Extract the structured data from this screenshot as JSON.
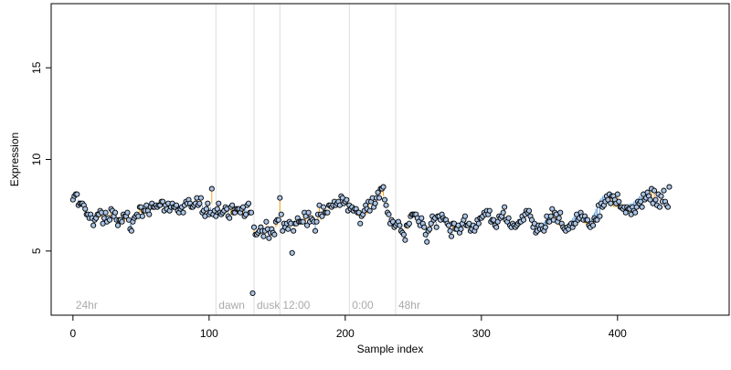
{
  "chart_data": {
    "type": "scatter",
    "xlabel": "Sample index",
    "ylabel": "Expression",
    "xlim": [
      -16,
      482
    ],
    "ylim": [
      1.5,
      18.5
    ],
    "x_ticks": [
      0,
      100,
      200,
      300,
      400
    ],
    "x_tick_labels": [
      "0",
      "100",
      "200",
      "300",
      "400"
    ],
    "y_ticks": [
      5,
      10,
      15
    ],
    "y_tick_labels": [
      "5",
      "10",
      "15"
    ],
    "grid": false,
    "segment_colors": {
      "above_trend": "#f0a020",
      "below_trend": "#6a9fd8"
    },
    "point_fill": "#aac4e6",
    "point_stroke": "#000000",
    "phase_lines": [
      {
        "x": 105,
        "label": "dawn"
      },
      {
        "x": 133,
        "label": "dusk"
      },
      {
        "x": 152,
        "label": "12:00"
      },
      {
        "x": 203,
        "label": "0:00"
      },
      {
        "x": 237,
        "label": "48hr"
      }
    ],
    "phase_start_label": "24hr",
    "series": [
      {
        "values": [
          7.7,
          7.9,
          8.1,
          8.1,
          7.8,
          7.6,
          7.5,
          7.5,
          7.2,
          7.1,
          6.9,
          6.8,
          7.0,
          7.1,
          7.1,
          6.6,
          7.0,
          7.0,
          6.9,
          6.8,
          6.9,
          6.8,
          6.9,
          7.0,
          6.9,
          6.7,
          6.9,
          7.0,
          6.9,
          6.9,
          7.0,
          6.7,
          6.7,
          6.6,
          6.5,
          6.5,
          6.6,
          6.7,
          6.6,
          6.9,
          7.0,
          6.8,
          6.5,
          6.6,
          6.6,
          6.7,
          6.9,
          6.9,
          7.0,
          7.1,
          7.1,
          7.2,
          7.0,
          7.4,
          7.2,
          7.3,
          7.4,
          7.4,
          7.4,
          7.4,
          7.5,
          7.4,
          7.5,
          7.6,
          7.6,
          7.7,
          7.5,
          7.3,
          7.5,
          7.3,
          7.5,
          7.2,
          7.4,
          7.6,
          7.5,
          7.4,
          7.5,
          7.5,
          7.2,
          7.3,
          7.5,
          7.4,
          7.6,
          7.6,
          7.5,
          7.5,
          7.6,
          7.3,
          7.6,
          7.6,
          7.8,
          7.7,
          7.5,
          7.4,
          7.7,
          7.5,
          7.3,
          7.3,
          7.5,
          7.4,
          7.3,
          7.4,
          7.6,
          7.1,
          7.3,
          7.2,
          7.2,
          7.2,
          7.2,
          7.2,
          7.3,
          7.2,
          7.2,
          7.1,
          7.2,
          7.0,
          7.0,
          7.2,
          7.0,
          7.0,
          7.2,
          7.1,
          7.1,
          7.1,
          7.2,
          7.0,
          7.4,
          7.3,
          7.4,
          7.4,
          7.2,
          7.2,
          2.7,
          6.0,
          6.0,
          6.0,
          5.9,
          6.0,
          6.0,
          6.1,
          5.8,
          6.1,
          6.4,
          6.2,
          6.1,
          6.0,
          5.9,
          6.2,
          5.8,
          6.3,
          6.4,
          6.7,
          7.1,
          6.9,
          6.6,
          6.5,
          6.5,
          6.6,
          6.3,
          6.7,
          6.7,
          5.0,
          6.1,
          6.4,
          6.5,
          6.7,
          6.6,
          6.8,
          6.6,
          6.6,
          6.6,
          6.6,
          6.5,
          6.8,
          6.6,
          6.6,
          6.6,
          6.5,
          6.5,
          6.7,
          6.7,
          6.9,
          6.7,
          6.8,
          6.9,
          7.0,
          7.2,
          7.2,
          7.3,
          7.5,
          7.3,
          7.4,
          7.4,
          7.5,
          7.5,
          7.6,
          7.6,
          7.8,
          7.8,
          7.6,
          7.6,
          7.6,
          7.5,
          7.4,
          7.4,
          7.3,
          7.2,
          7.2,
          7.1,
          7.0,
          6.9,
          6.6,
          6.8,
          6.9,
          7.0,
          7.1,
          7.0,
          7.3,
          7.3,
          7.6,
          7.5,
          7.7,
          7.5,
          7.8,
          7.9,
          8.0,
          8.1,
          8.2,
          8.0,
          7.9,
          7.6,
          7.3,
          7.0,
          6.8,
          6.6,
          6.5,
          6.4,
          6.4,
          6.4,
          6.3,
          6.3,
          6.2,
          6.1,
          6.1,
          5.9,
          6.2,
          6.2,
          6.5,
          6.8,
          6.9,
          7.0,
          7.1,
          6.9,
          6.8,
          6.8,
          6.6,
          6.7,
          6.4,
          6.3,
          6.1,
          6.0,
          6.1,
          6.1,
          6.3,
          6.5,
          6.5,
          6.6,
          6.6,
          6.8,
          6.9,
          6.9,
          6.9,
          6.8,
          6.6,
          6.6,
          6.5,
          6.5,
          6.1,
          6.1,
          6.2,
          6.4,
          6.4,
          6.3,
          6.3,
          6.1,
          6.3,
          6.5,
          6.6,
          6.6,
          6.5,
          6.4,
          6.3,
          6.1,
          6.1,
          6.2,
          6.3,
          6.4,
          6.5,
          6.6,
          6.7,
          6.8,
          6.9,
          7.0,
          7.0,
          7.1,
          7.1,
          7.0,
          6.9,
          6.8,
          6.6,
          6.5,
          6.5,
          6.6,
          6.7,
          6.8,
          6.9,
          7.0,
          6.9,
          6.8,
          6.7,
          6.6,
          6.5,
          6.4,
          6.3,
          6.3,
          6.3,
          6.4,
          6.5,
          6.7,
          6.8,
          6.9,
          7.0,
          7.1,
          7.1,
          7.0,
          6.8,
          6.7,
          6.5,
          6.4,
          6.3,
          6.2,
          6.2,
          6.2,
          6.3,
          6.4,
          6.5,
          6.6,
          6.7,
          6.8,
          6.9,
          7.0,
          7.0,
          7.0,
          6.9,
          6.8,
          6.7,
          6.5,
          6.4,
          6.3,
          6.2,
          6.1,
          6.1,
          6.2,
          6.3,
          6.4,
          6.5,
          6.7,
          6.8,
          6.9,
          7.0,
          7.0,
          7.0,
          6.9,
          6.8,
          6.7,
          6.6,
          6.5,
          6.4,
          6.4,
          6.5,
          6.6,
          6.8,
          7.0,
          7.1,
          7.3,
          7.5,
          7.6,
          7.8,
          7.9,
          8.0,
          8.0,
          8.0,
          7.9,
          7.8,
          7.7,
          7.6,
          7.5,
          7.4,
          7.4,
          7.4,
          7.4,
          7.4,
          7.3,
          7.3,
          7.2,
          7.2,
          7.3,
          7.4,
          7.5,
          7.6,
          7.6,
          7.6,
          7.7,
          7.8,
          7.8,
          7.9,
          8.0,
          8.0,
          8.1,
          8.1,
          8.0,
          8.0,
          7.9,
          7.9,
          7.8,
          7.8,
          7.8,
          7.8,
          7.9,
          7.9
        ],
        "observed": [
          7.8,
          8.0,
          8.1,
          8.1,
          7.5,
          7.6,
          7.6,
          7.6,
          7.5,
          7.3,
          7.0,
          7.0,
          6.8,
          7.0,
          6.8,
          6.4,
          6.7,
          6.8,
          7.0,
          7.0,
          7.2,
          7.1,
          6.5,
          6.8,
          7.1,
          6.6,
          6.8,
          6.7,
          7.3,
          7.2,
          6.9,
          7.1,
          6.7,
          6.4,
          6.7,
          6.7,
          6.6,
          7.0,
          6.9,
          6.9,
          7.1,
          6.7,
          6.2,
          6.1,
          6.6,
          6.8,
          6.9,
          7.0,
          6.9,
          7.4,
          7.4,
          6.9,
          7.2,
          7.2,
          7.5,
          7.2,
          7.0,
          7.4,
          7.6,
          7.4,
          7.4,
          7.5,
          7.4,
          7.5,
          7.5,
          7.7,
          7.7,
          7.2,
          7.5,
          7.3,
          7.6,
          7.2,
          7.4,
          7.6,
          7.4,
          7.4,
          7.5,
          7.2,
          7.1,
          7.3,
          7.4,
          7.1,
          7.5,
          7.7,
          7.6,
          7.8,
          7.6,
          7.4,
          7.4,
          7.5,
          7.6,
          7.9,
          7.5,
          7.6,
          7.9,
          7.1,
          7.2,
          6.9,
          7.3,
          7.6,
          7.0,
          7.1,
          8.4,
          7.0,
          7.2,
          6.9,
          7.3,
          7.6,
          7.1,
          7.0,
          7.1,
          7.2,
          7.4,
          7.3,
          6.9,
          6.8,
          7.4,
          7.5,
          7.1,
          7.1,
          7.3,
          7.3,
          7.3,
          7.1,
          7.3,
          7.4,
          6.9,
          7.0,
          7.5,
          7.6,
          7.1,
          7.1,
          2.7,
          6.3,
          5.9,
          5.9,
          6.0,
          6.1,
          6.3,
          6.1,
          5.8,
          6.1,
          6.6,
          6.2,
          5.7,
          6.0,
          6.2,
          6.0,
          5.9,
          6.6,
          6.7,
          6.7,
          7.9,
          7.0,
          6.1,
          6.5,
          6.3,
          6.5,
          6.2,
          6.6,
          6.5,
          4.9,
          6.1,
          6.5,
          6.5,
          6.8,
          6.6,
          6.6,
          6.6,
          6.6,
          7.1,
          6.9,
          6.4,
          7.1,
          6.6,
          6.8,
          6.7,
          6.6,
          6.1,
          6.6,
          7.0,
          7.5,
          7.0,
          6.9,
          7.4,
          7.1,
          7.1,
          7.1,
          7.5,
          7.5,
          7.4,
          7.5,
          7.7,
          7.5,
          7.6,
          7.7,
          7.5,
          8.0,
          7.9,
          7.6,
          7.7,
          7.8,
          7.2,
          7.5,
          7.3,
          7.4,
          7.2,
          7.3,
          7.3,
          7.1,
          7.1,
          6.5,
          6.9,
          7.0,
          7.2,
          7.5,
          7.3,
          7.7,
          7.2,
          7.7,
          7.9,
          7.4,
          7.6,
          7.9,
          8.2,
          7.9,
          8.4,
          8.4,
          8.5,
          7.8,
          7.5,
          7.1,
          7.0,
          6.5,
          6.7,
          6.6,
          6.3,
          6.4,
          6.5,
          6.6,
          6.4,
          6.1,
          6.0,
          5.9,
          5.6,
          6.4,
          6.4,
          6.5,
          6.9,
          7.0,
          7.0,
          7.0,
          7.0,
          6.8,
          6.6,
          6.4,
          6.8,
          6.5,
          6.3,
          5.9,
          5.5,
          6.1,
          6.2,
          6.5,
          6.9,
          6.7,
          6.8,
          6.3,
          6.9,
          6.9,
          6.7,
          7.0,
          6.8,
          6.7,
          6.7,
          6.5,
          6.4,
          6.1,
          5.8,
          6.5,
          6.5,
          6.2,
          6.2,
          6.4,
          6.0,
          6.2,
          6.5,
          6.7,
          6.9,
          6.4,
          6.4,
          6.5,
          6.1,
          6.2,
          6.4,
          6.1,
          6.3,
          6.7,
          6.5,
          6.8,
          6.8,
          6.9,
          7.1,
          7.0,
          7.2,
          7.0,
          7.2,
          6.6,
          6.7,
          6.7,
          6.4,
          6.3,
          6.6,
          6.9,
          6.8,
          6.9,
          7.1,
          7.4,
          6.7,
          6.6,
          6.8,
          6.4,
          6.3,
          6.5,
          6.4,
          6.3,
          6.4,
          6.5,
          6.6,
          6.6,
          6.9,
          6.7,
          7.0,
          7.2,
          7.1,
          7.2,
          6.9,
          6.7,
          6.3,
          6.5,
          6.0,
          6.1,
          6.4,
          6.2,
          6.4,
          6.2,
          6.1,
          6.3,
          6.9,
          6.6,
          6.6,
          6.9,
          7.3,
          6.7,
          7.1,
          7.0,
          6.6,
          6.8,
          7.1,
          6.5,
          6.3,
          6.2,
          6.1,
          6.3,
          6.2,
          6.4,
          6.5,
          6.3,
          6.5,
          6.5,
          7.0,
          6.7,
          6.8,
          7.1,
          6.9,
          6.7,
          6.9,
          6.7,
          6.7,
          6.4,
          6.3,
          6.5,
          6.4,
          6.8,
          6.7,
          6.7,
          7.5,
          6.9,
          7.6,
          7.4,
          7.5,
          7.7,
          8.0,
          7.8,
          8.1,
          7.6,
          8.0,
          8.0,
          7.8,
          7.6,
          8.1,
          7.7,
          7.4,
          7.4,
          7.3,
          7.4,
          7.1,
          7.4,
          7.3,
          7.3,
          7.0,
          7.4,
          7.2,
          7.1,
          7.4,
          7.7,
          7.6,
          7.7,
          7.4,
          8.1,
          7.8,
          7.9,
          8.2,
          8.0,
          7.8,
          8.4,
          7.6,
          8.3,
          7.8,
          7.5,
          8.1,
          7.4,
          8.0,
          7.7,
          8.3,
          7.7,
          7.5,
          7.4,
          8.5
        ]
      }
    ]
  }
}
